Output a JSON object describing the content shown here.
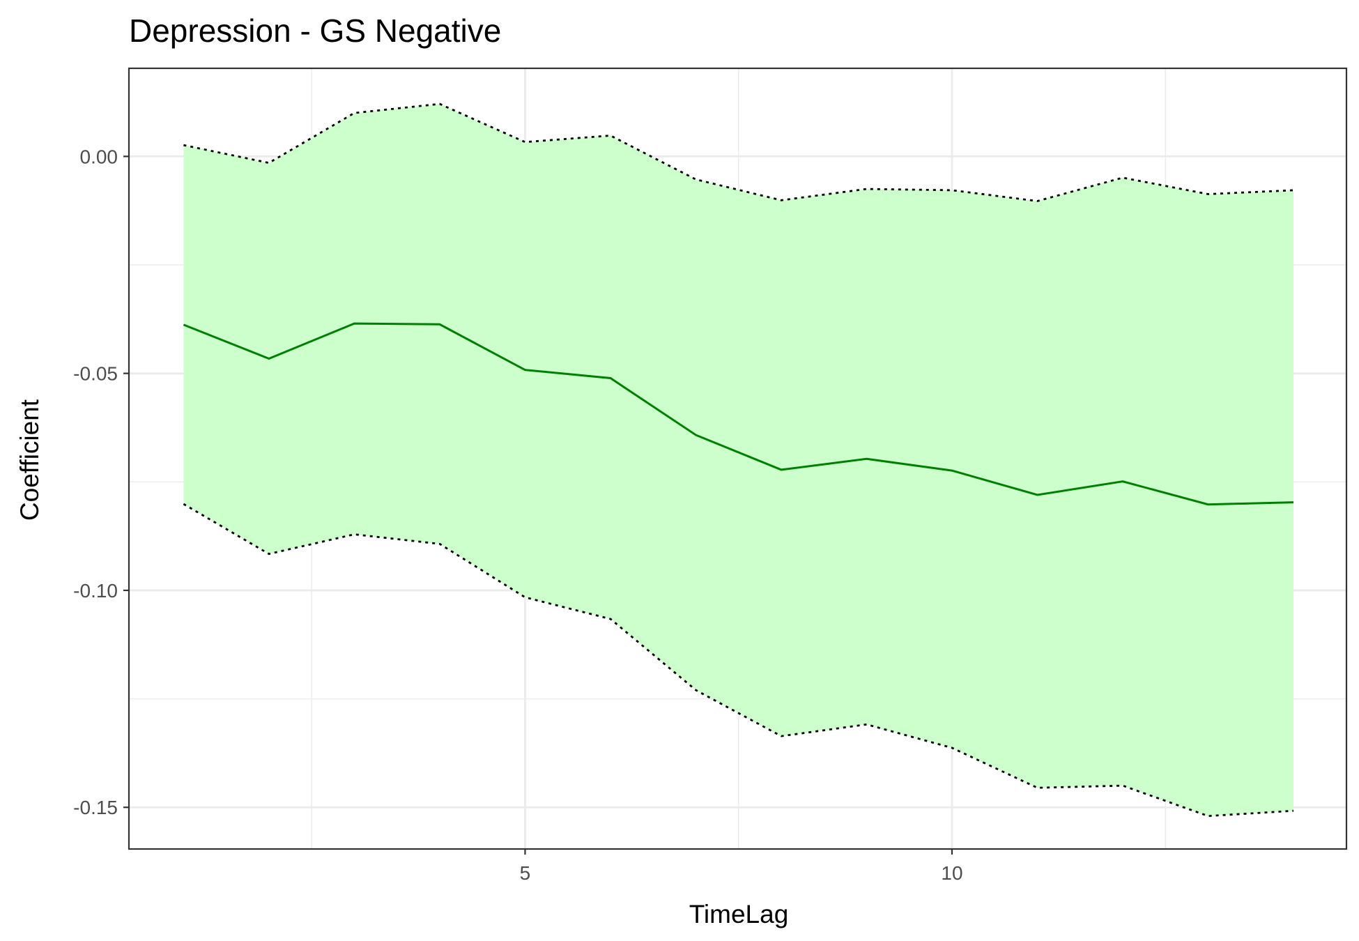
{
  "chart_data": {
    "type": "line",
    "title": "Depression - GS Negative",
    "xlabel": "TimeLag",
    "ylabel": "Coefficient",
    "xlim": [
      0.36,
      14.62
    ],
    "ylim": [
      -0.1596,
      0.0203
    ],
    "x_ticks": [
      5,
      10
    ],
    "x_tick_labels": [
      "5",
      "10"
    ],
    "x_minor_ticks": [
      2.5,
      7.5,
      12.5
    ],
    "y_ticks": [
      0.0,
      -0.05,
      -0.1,
      -0.15
    ],
    "y_tick_labels": [
      "0.00",
      "-0.05",
      "-0.10",
      "-0.15"
    ],
    "y_minor_ticks": [
      -0.025,
      -0.075,
      -0.125
    ],
    "grid": true,
    "x": [
      1,
      2,
      3,
      4,
      5,
      6,
      7,
      8,
      9,
      10,
      11,
      12,
      13,
      14
    ],
    "series": [
      {
        "name": "Coefficient",
        "style": "solid",
        "values": [
          -0.0388,
          -0.0466,
          -0.0385,
          -0.0387,
          -0.0492,
          -0.0511,
          -0.0642,
          -0.0722,
          -0.0697,
          -0.0724,
          -0.078,
          -0.0749,
          -0.0802,
          -0.0797
        ]
      },
      {
        "name": "Upper bound",
        "style": "dotted",
        "values": [
          0.0026,
          -0.0015,
          0.01,
          0.0121,
          0.0033,
          0.0048,
          -0.0053,
          -0.0101,
          -0.0075,
          -0.0078,
          -0.0103,
          -0.0049,
          -0.0087,
          -0.0078
        ]
      },
      {
        "name": "Lower bound",
        "style": "dotted",
        "values": [
          -0.0801,
          -0.0916,
          -0.0871,
          -0.0893,
          -0.1016,
          -0.1066,
          -0.123,
          -0.1336,
          -0.1309,
          -0.1363,
          -0.1455,
          -0.145,
          -0.152,
          -0.1508
        ]
      }
    ],
    "colors": {
      "line": "#008000",
      "ribbon": "#CCFFCC",
      "bounds": "#000000",
      "grid": "#EBEBEB",
      "panel_border": "#333333"
    }
  }
}
